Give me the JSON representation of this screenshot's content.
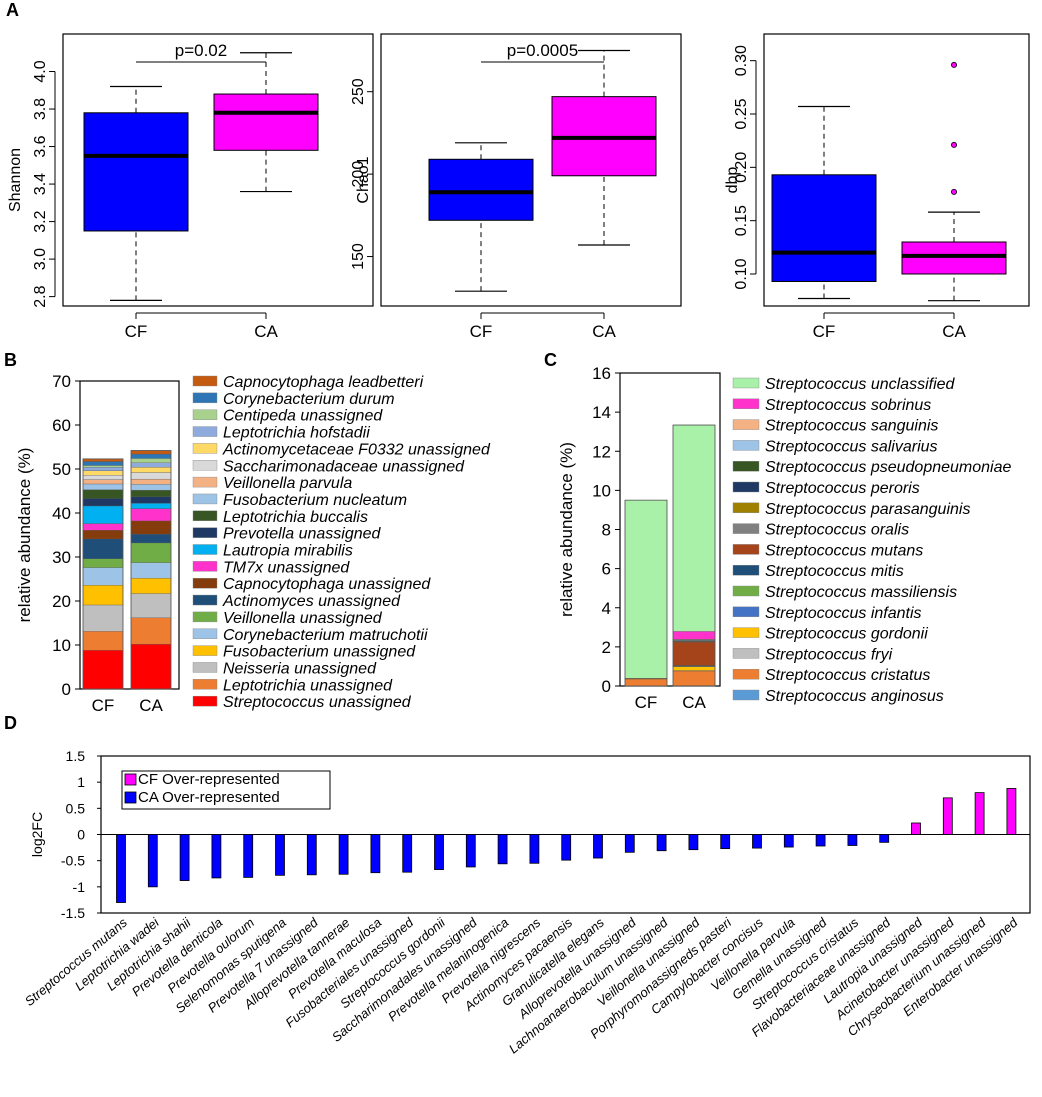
{
  "figure": {
    "panel_labels": [
      "A",
      "B",
      "C",
      "D"
    ]
  },
  "chart_data": [
    {
      "id": "A1",
      "type": "boxplot",
      "ylabel": "Shannon",
      "categories": [
        "CF",
        "CA"
      ],
      "ylim": [
        2.75,
        4.2
      ],
      "yticks": [
        "2.8",
        "3.0",
        "3.2",
        "3.4",
        "3.6",
        "3.8",
        "4.0"
      ],
      "boxes": [
        {
          "name": "CF",
          "whisker_low": 2.78,
          "q1": 3.15,
          "median": 3.55,
          "q3": 3.78,
          "whisker_high": 3.92,
          "outliers": [],
          "color": "#0000ff"
        },
        {
          "name": "CA",
          "whisker_low": 3.36,
          "q1": 3.58,
          "median": 3.78,
          "q3": 3.88,
          "whisker_high": 4.1,
          "outliers": [],
          "color": "#ff00ff"
        }
      ],
      "annotation": "p=0.02"
    },
    {
      "id": "A2",
      "type": "boxplot",
      "ylabel": "Chao1",
      "categories": [
        "CF",
        "CA"
      ],
      "ylim": [
        120,
        285
      ],
      "yticks": [
        "150",
        "200",
        "250"
      ],
      "boxes": [
        {
          "name": "CF",
          "whisker_low": 129,
          "q1": 172,
          "median": 189,
          "q3": 209,
          "whisker_high": 219,
          "outliers": [],
          "color": "#0000ff"
        },
        {
          "name": "CA",
          "whisker_low": 157,
          "q1": 199,
          "median": 222,
          "q3": 247,
          "whisker_high": 275,
          "outliers": [],
          "color": "#ff00ff"
        }
      ],
      "annotation": "p=0.0005"
    },
    {
      "id": "A3",
      "type": "boxplot",
      "ylabel": "dbp",
      "categories": [
        "CF",
        "CA"
      ],
      "ylim": [
        0.07,
        0.325
      ],
      "yticks": [
        "0.10",
        "0.15",
        "0.20",
        "0.25",
        "0.30"
      ],
      "boxes": [
        {
          "name": "CF",
          "whisker_low": 0.077,
          "q1": 0.093,
          "median": 0.12,
          "q3": 0.193,
          "whisker_high": 0.257,
          "outliers": [],
          "color": "#0000ff"
        },
        {
          "name": "CA",
          "whisker_low": 0.075,
          "q1": 0.1,
          "median": 0.117,
          "q3": 0.13,
          "whisker_high": 0.158,
          "outliers": [
            0.177,
            0.221,
            0.296
          ],
          "color": "#ff00ff"
        }
      ],
      "annotation": ""
    },
    {
      "id": "B",
      "type": "bar",
      "stacked": true,
      "ylabel": "relative abundance (%)",
      "categories": [
        "CF",
        "CA"
      ],
      "ylim": [
        0,
        70
      ],
      "yticks": [
        "0",
        "10",
        "20",
        "30",
        "40",
        "50",
        "60",
        "70"
      ],
      "legend_order": "top-to-bottom",
      "series": [
        {
          "name": "Capnocytophaga leadbetteri",
          "color": "#c55a11",
          "values": [
            0.6,
            0.8
          ]
        },
        {
          "name": "Corynebacterium durum",
          "color": "#2e75b6",
          "values": [
            0.9,
            1.0
          ]
        },
        {
          "name": "Centipeda unassigned",
          "color": "#a9d18e",
          "values": [
            0.4,
            1.0
          ]
        },
        {
          "name": "Leptotrichia hofstadii",
          "color": "#8faadc",
          "values": [
            0.8,
            1.0
          ]
        },
        {
          "name": "Actinomycetaceae F0332 unassigned",
          "color": "#ffd966",
          "values": [
            1.0,
            1.2
          ]
        },
        {
          "name": "Saccharimonadaceae unassigned",
          "color": "#d9d9d9",
          "values": [
            1.0,
            1.5
          ]
        },
        {
          "name": "Veillonella parvula",
          "color": "#f4b183",
          "values": [
            1.0,
            1.2
          ]
        },
        {
          "name": "Fusobacterium nucleatum",
          "color": "#9dc3e6",
          "values": [
            1.3,
            1.3
          ]
        },
        {
          "name": "Leptotrichia buccalis",
          "color": "#375623",
          "values": [
            2.0,
            1.5
          ]
        },
        {
          "name": "Prevotella unassigned",
          "color": "#203864",
          "values": [
            1.7,
            1.5
          ]
        },
        {
          "name": "Lautropia mirabilis",
          "color": "#00b0f0",
          "values": [
            4.0,
            1.2
          ]
        },
        {
          "name": "TM7x unassigned",
          "color": "#ff33cc",
          "values": [
            1.5,
            2.8
          ]
        },
        {
          "name": "Capnocytophaga unassigned",
          "color": "#843c0c",
          "values": [
            2.0,
            3.0
          ]
        },
        {
          "name": "Actinomyces unassigned",
          "color": "#1f4e79",
          "values": [
            4.5,
            2.0
          ]
        },
        {
          "name": "Veillonella unassigned",
          "color": "#70ad47",
          "values": [
            2.0,
            4.5
          ]
        },
        {
          "name": "Corynebacterium matruchotii",
          "color": "#9dc3e6",
          "values": [
            4.0,
            3.5
          ]
        },
        {
          "name": "Fusobacterium unassigned",
          "color": "#ffc000",
          "values": [
            4.5,
            3.5
          ]
        },
        {
          "name": "Neisseria unassigned",
          "color": "#bfbfbf",
          "values": [
            6.0,
            5.5
          ]
        },
        {
          "name": "Leptotrichia unassigned",
          "color": "#ed7d31",
          "values": [
            4.3,
            6.0
          ]
        },
        {
          "name": "Streptococcus unassigned",
          "color": "#ff0000",
          "values": [
            8.8,
            10.2
          ]
        }
      ]
    },
    {
      "id": "C",
      "type": "bar",
      "stacked": true,
      "ylabel": "relative abundance (%)",
      "categories": [
        "CF",
        "CA"
      ],
      "ylim": [
        0,
        16
      ],
      "yticks": [
        "0",
        "2",
        "4",
        "6",
        "8",
        "10",
        "12",
        "14",
        "16"
      ],
      "legend_order": "top-to-bottom",
      "series": [
        {
          "name": "Streptococcus unclassified",
          "color": "#a9f0a9",
          "values": [
            9.1,
            10.55
          ]
        },
        {
          "name": "Streptococcus sobrinus",
          "color": "#ff33cc",
          "values": [
            0.0,
            0.4
          ]
        },
        {
          "name": "Streptococcus sanguinis",
          "color": "#f4b183",
          "values": [
            0.0,
            0.03
          ]
        },
        {
          "name": "Streptococcus salivarius",
          "color": "#9dc3e6",
          "values": [
            0.0,
            0.03
          ]
        },
        {
          "name": "Streptococcus pseudopneumoniae",
          "color": "#375623",
          "values": [
            0.0,
            0.02
          ]
        },
        {
          "name": "Streptococcus peroris",
          "color": "#203864",
          "values": [
            0.0,
            0.02
          ]
        },
        {
          "name": "Streptococcus parasanguinis",
          "color": "#a08000",
          "values": [
            0.0,
            0.02
          ]
        },
        {
          "name": "Streptococcus oralis",
          "color": "#808080",
          "values": [
            0.0,
            0.02
          ]
        },
        {
          "name": "Streptococcus mutans",
          "color": "#a5441a",
          "values": [
            0.02,
            1.2
          ]
        },
        {
          "name": "Streptococcus mitis",
          "color": "#1f4e79",
          "values": [
            0.0,
            0.02
          ]
        },
        {
          "name": "Streptococcus massiliensis",
          "color": "#70ad47",
          "values": [
            0.0,
            0.02
          ]
        },
        {
          "name": "Streptococcus infantis",
          "color": "#4472c4",
          "values": [
            0.0,
            0.02
          ]
        },
        {
          "name": "Streptococcus gordonii",
          "color": "#ffc000",
          "values": [
            0.02,
            0.2
          ]
        },
        {
          "name": "Streptococcus fryi",
          "color": "#bfbfbf",
          "values": [
            0.0,
            0.02
          ]
        },
        {
          "name": "Streptococcus cristatus",
          "color": "#ed7d31",
          "values": [
            0.36,
            0.75
          ]
        },
        {
          "name": "Streptococcus anginosus",
          "color": "#5b9bd5",
          "values": [
            0.0,
            0.02
          ]
        }
      ]
    },
    {
      "id": "D",
      "type": "bar",
      "ylabel": "log2FC",
      "ylim": [
        -1.5,
        1.5
      ],
      "yticks": [
        "-1.5",
        "-1",
        "-0.5",
        "0",
        "0.5",
        "1",
        "1.5"
      ],
      "legend": [
        {
          "label": "CF Over-represented",
          "color": "#ff00ff"
        },
        {
          "label": "CA Over-represented",
          "color": "#0000ff"
        }
      ],
      "categories": [
        "Streptococcus mutans",
        "Leptotrichia wadei",
        "Leptotrichia shahii",
        "Prevotella denticola",
        "Prevotella oulorum",
        "Selenomonas sputigena",
        "Prevotella 7 unassigned",
        "Alloprevotella tannerae",
        "Prevotella maculosa",
        "Fusobacteriales unassigned",
        "Streptococcus gordonii",
        "Saccharimonadales unassigned",
        "Prevotella melaninogenica",
        "Prevotella nigrescens",
        "Actinomyces pacaensis",
        "Granulicatella elegans",
        "Alloprevotella unassigned",
        "Lachnoanaerobaculum unassigned",
        "Veillonella unassigned",
        "Porphyromonassigneds pasteri",
        "Campylobacter concisus",
        "Veillonella parvula",
        "Gemella unassigned",
        "Streptococcus cristatus",
        "Flavobacteriaceae unassigned",
        "Lautropia unassigned",
        "Acinetobacter unassigned",
        "Chryseobacterium unassigned",
        "Enterobacter unassigned"
      ],
      "values": [
        -1.3,
        -1.0,
        -0.88,
        -0.83,
        -0.82,
        -0.78,
        -0.77,
        -0.76,
        -0.73,
        -0.72,
        -0.67,
        -0.62,
        -0.56,
        -0.55,
        -0.49,
        -0.45,
        -0.34,
        -0.31,
        -0.29,
        -0.27,
        -0.26,
        -0.24,
        -0.22,
        -0.21,
        -0.15,
        0.22,
        0.7,
        0.8,
        0.88
      ]
    }
  ]
}
